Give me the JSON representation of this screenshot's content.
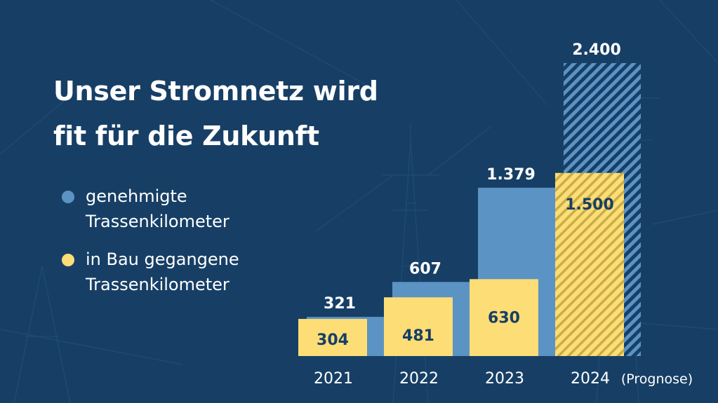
{
  "title": {
    "line1": "Unser Stromnetz wird",
    "line2": "fit für die Zukunft"
  },
  "colors": {
    "background": "#173f66",
    "approved": "#5b93c4",
    "construction": "#fddd76",
    "value_text": "#173f66"
  },
  "chart_data": {
    "type": "bar",
    "categories": [
      "2021",
      "2022",
      "2023",
      "2024"
    ],
    "category_notes": [
      "",
      "",
      "",
      "(Prognose)"
    ],
    "series": [
      {
        "name": "genehmigte Trassenkilometer",
        "values": [
          321,
          607,
          1379,
          2400
        ],
        "labels": [
          "321",
          "607",
          "1.379",
          "2.400"
        ],
        "forecast": [
          false,
          false,
          false,
          true
        ]
      },
      {
        "name": "in Bau gegangene Trassenkilometer",
        "values": [
          304,
          481,
          630,
          1500
        ],
        "labels": [
          "304",
          "481",
          "630",
          "1.500"
        ],
        "forecast": [
          false,
          false,
          false,
          true
        ]
      }
    ],
    "legend_placement": "left",
    "grid": false,
    "ylim": [
      0,
      2400
    ]
  },
  "legend": [
    {
      "label": "genehmigte Trassenkilometer",
      "icon": "blue-dot-icon"
    },
    {
      "label": "in Bau gegangene Trassenkilometer",
      "icon": "yellow-dot-icon"
    }
  ]
}
